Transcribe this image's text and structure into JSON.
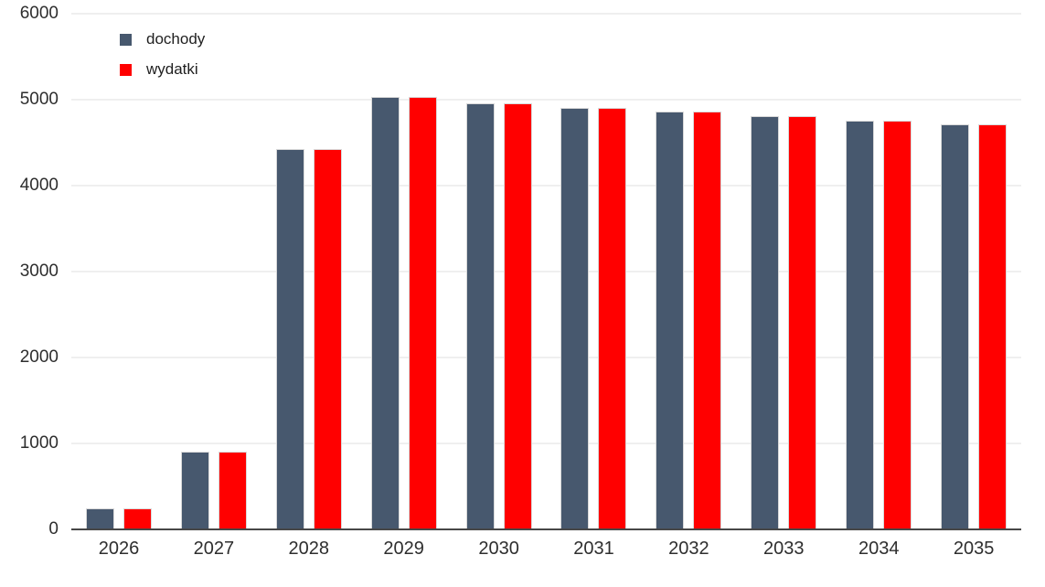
{
  "chart_data": {
    "type": "bar",
    "title": "",
    "xlabel": "",
    "ylabel": "",
    "categories": [
      "2026",
      "2027",
      "2028",
      "2029",
      "2030",
      "2031",
      "2032",
      "2033",
      "2034",
      "2035"
    ],
    "series": [
      {
        "name": "dochody",
        "color": "#47586e",
        "values": [
          250,
          900,
          4430,
          5030,
          4960,
          4910,
          4860,
          4810,
          4760,
          4710
        ]
      },
      {
        "name": "wydatki",
        "color": "#ff0000",
        "values": [
          250,
          900,
          4430,
          5030,
          4960,
          4910,
          4860,
          4810,
          4760,
          4710
        ]
      }
    ],
    "ylim": [
      0,
      6000
    ],
    "y_ticks": [
      0,
      1000,
      2000,
      3000,
      4000,
      5000,
      6000
    ],
    "grid": "horizontal",
    "legend_position": "top-left"
  },
  "colors": {
    "dochody_bar": "#47586e",
    "wydatki_bar": "#ff0000",
    "gridline": "#efefef",
    "axis_line": "#474747",
    "tick_text": "#2e2e2e",
    "background": "#ffffff"
  }
}
